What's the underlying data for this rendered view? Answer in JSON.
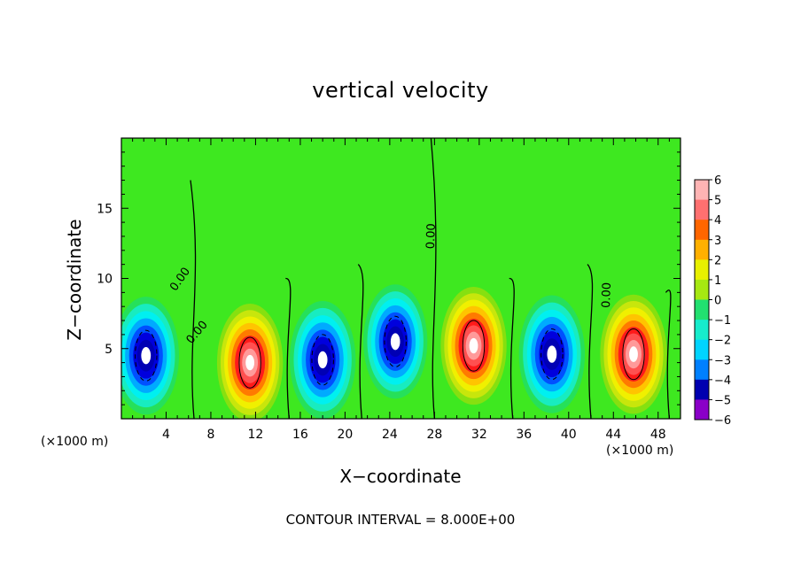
{
  "chart_data": {
    "type": "heatmap",
    "title": "vertical velocity",
    "xlabel": "X−coordinate",
    "ylabel": "Z−coordinate",
    "x_unit": "(×1000 m)",
    "x_unit_right": "(×1000 m)",
    "footer": "CONTOUR INTERVAL = 8.000E+00",
    "xlim": [
      0,
      50
    ],
    "ylim": [
      0,
      20
    ],
    "x_ticks": [
      4,
      8,
      12,
      16,
      20,
      24,
      28,
      32,
      36,
      40,
      44,
      48
    ],
    "y_ticks": [
      5,
      10,
      15
    ],
    "colorbar": {
      "min": -6,
      "max": 6,
      "ticks": [
        6,
        5,
        4,
        3,
        2,
        1,
        0,
        -1,
        -2,
        -3,
        -4,
        -5,
        -6
      ]
    },
    "contour_labels": [
      "0.00",
      "0.00",
      "0.00",
      "0.00"
    ],
    "cells": [
      {
        "x": 2.2,
        "z": 4.5,
        "sign": "negative",
        "strength": 5.5
      },
      {
        "x": 11.5,
        "z": 4.0,
        "sign": "positive",
        "strength": 5.5
      },
      {
        "x": 18.0,
        "z": 4.2,
        "sign": "negative",
        "strength": 5.5
      },
      {
        "x": 24.5,
        "z": 5.5,
        "sign": "negative",
        "strength": 4.8
      },
      {
        "x": 31.5,
        "z": 5.2,
        "sign": "positive",
        "strength": 5.5
      },
      {
        "x": 38.5,
        "z": 4.6,
        "sign": "negative",
        "strength": 5.5
      },
      {
        "x": 45.8,
        "z": 4.6,
        "sign": "positive",
        "strength": 5.8
      }
    ]
  }
}
